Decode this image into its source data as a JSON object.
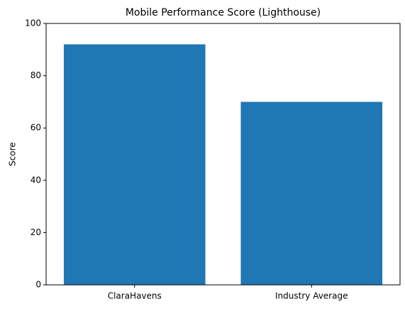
{
  "chart_data": {
    "type": "bar",
    "title": "Mobile Performance Score (Lighthouse)",
    "y_label": "Score",
    "categories": [
      "ClaraHavens",
      "Industry Average"
    ],
    "values": [
      92,
      70
    ],
    "color": "#1f77b4",
    "ylim": [
      0,
      100
    ],
    "yticks": [
      0,
      20,
      40,
      60,
      80,
      100
    ]
  }
}
